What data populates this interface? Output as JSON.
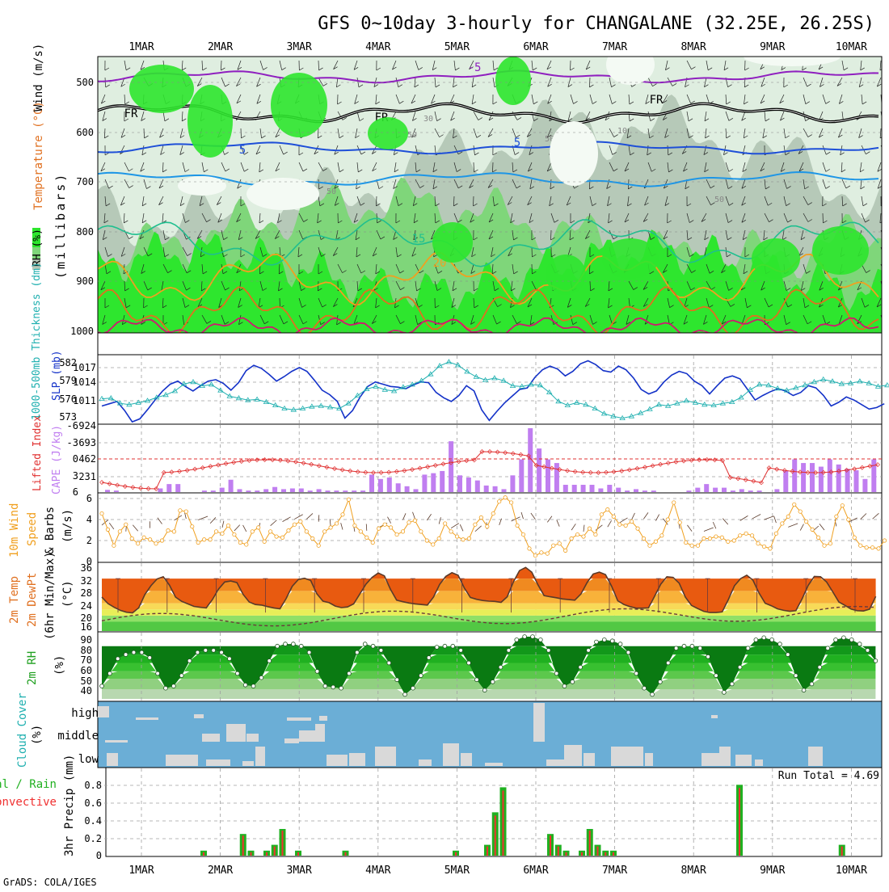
{
  "page": {
    "title": "GFS 0~10day 3-hourly for CHANGALANE (32.25E, 26.25S)",
    "footer": "GrADS: COLA/IGES"
  },
  "date_labels": [
    "1MAR",
    "2MAR",
    "3MAR",
    "4MAR",
    "5MAR",
    "6MAR",
    "7MAR",
    "8MAR",
    "9MAR",
    "10MAR"
  ],
  "colors": {
    "frame": "#000000",
    "grid": "#a0a0a0",
    "rh_light": "#dfeee0",
    "rh_mid": "#b6c9b8",
    "rh_green": "#7fd67a",
    "rh_bright": "#2ee62e",
    "temp_purple": "#8f1fbf",
    "temp_black": "#000000",
    "temp_blue": "#1e4fd8",
    "temp_lightblue": "#1e96e6",
    "temp_teal": "#1fbf8f",
    "temp_orange": "#f0a020",
    "temp_dark_orange": "#e07020",
    "temp_magenta": "#d01870",
    "slp": "#1432c8",
    "thickness": "#20b0b0",
    "lifted_index": "#e03030",
    "cape": "#c07ef0",
    "wind": "#f0a020",
    "cloud_bg": "#6baed6",
    "cloud_fill": "#d9d9d9",
    "precip_total": "#20b020",
    "precip_conv": "#f03030"
  },
  "panels": {
    "upper_air": {
      "ylabel_wind": "Wind (m/s)",
      "ylabel_temp": "Temperature (°C)",
      "ylabel_rh": "RH (%)",
      "ylabel_units": "(millibars)",
      "yticks": [
        "500",
        "600",
        "700",
        "800",
        "900",
        "1000"
      ],
      "contour_labels": [
        "-5",
        "FR",
        "FR",
        "FR",
        "5",
        "5",
        "10",
        "10",
        "15",
        "20",
        "50",
        "50",
        "50",
        "50",
        "10",
        "30"
      ]
    },
    "slp": {
      "ylabel_thickness": "1000-500mb Thickness (dm)",
      "ylabel_slp": "SLP (mb)",
      "yticks_thickness": [
        "582",
        "579",
        "576",
        "573"
      ],
      "yticks_slp": [
        "1017",
        "1014",
        "1011"
      ]
    },
    "cape": {
      "ylabel_li": "Lifted Index",
      "ylabel_cape": "CAPE (J/kg)",
      "yticks_li": [
        "-6",
        "-3",
        "0",
        "3",
        "6"
      ],
      "yticks_cape": [
        "924",
        "693",
        "462",
        "231"
      ]
    },
    "wind": {
      "ylabel_1": "10m Wind",
      "ylabel_2": "Speed",
      "ylabel_3": "& Barbs",
      "ylabel_4": "(m/s)",
      "yticks": [
        "6",
        "4",
        "2",
        "0"
      ]
    },
    "temp": {
      "ylabel_1": "2m Temp",
      "ylabel_2": "2m DewPt",
      "ylabel_3": "(6hr Min/Max)",
      "ylabel_4": "(°C)",
      "yticks": [
        "36",
        "32",
        "28",
        "24",
        "20",
        "16"
      ]
    },
    "rh": {
      "ylabel_1": "2m RH",
      "ylabel_2": "(%)",
      "yticks": [
        "90",
        "80",
        "70",
        "60",
        "50",
        "40"
      ]
    },
    "cloud": {
      "ylabel_1": "Cloud Cover",
      "ylabel_2": "(%)",
      "levels": [
        "high",
        "middle",
        "low"
      ]
    },
    "precip": {
      "ylabel_1": "Total / Rain",
      "ylabel_2": "Convective",
      "ylabel_3": "3hr Precip (mm)",
      "yticks": [
        "0.8",
        "0.6",
        "0.4",
        "0.2",
        "0"
      ],
      "run_total": "Run Total = 4.69"
    }
  },
  "chart_data": [
    {
      "type": "line",
      "name": "SLP",
      "units": "mb",
      "x_step_hours": 3,
      "values": [
        1011.8,
        1012.1,
        1012.4,
        1011.2,
        1009.7,
        1010.1,
        1011.3,
        1012.6,
        1013.8,
        1014.7,
        1015.1,
        1014.4,
        1013.8,
        1014.5,
        1015.1,
        1015.3,
        1014.8,
        1013.9,
        1014.9,
        1016.5,
        1017.2,
        1016.8,
        1016.0,
        1015.1,
        1015.7,
        1016.4,
        1016.9,
        1016.4,
        1015.2,
        1013.9,
        1013.3,
        1012.4,
        1010.2,
        1011.2,
        1013.0,
        1014.4,
        1015.0,
        1014.7,
        1014.4,
        1014.3,
        1014.1,
        1014.6,
        1015.0,
        1014.9,
        1013.6,
        1012.9,
        1012.4,
        1013.2,
        1014.5,
        1013.8,
        1011.3,
        1009.9,
        1011.1,
        1012.2,
        1013.1,
        1014.0,
        1014.2,
        1015.6,
        1016.6,
        1017.1,
        1016.7,
        1015.8,
        1016.4,
        1017.4,
        1017.8,
        1017.3,
        1016.5,
        1016.3,
        1017.1,
        1016.6,
        1015.5,
        1014.0,
        1013.4,
        1013.8,
        1015.0,
        1015.9,
        1016.4,
        1016.1,
        1015.1,
        1014.5,
        1013.4,
        1014.5,
        1015.5,
        1015.8,
        1015.4,
        1014.0,
        1012.6,
        1013.2,
        1013.7,
        1014.1,
        1013.8,
        1013.2,
        1013.6,
        1014.5,
        1014.2,
        1013.2,
        1011.8,
        1012.3,
        1013.0,
        1012.6,
        1012.0,
        1011.4,
        1011.6,
        1012.1
      ],
      "ylim": [
        1009.5,
        1018.5
      ]
    },
    {
      "type": "line",
      "name": "1000-500mb Thickness",
      "units": "dm",
      "x_step_hours": 3,
      "values": [
        576.3,
        576.4,
        575.6,
        575.4,
        575.7,
        576.0,
        576.5,
        576.9,
        577.5,
        578.6,
        578.9,
        578.3,
        578.5,
        577.6,
        576.7,
        576.4,
        576.1,
        576.2,
        575.8,
        575.3,
        574.8,
        574.6,
        574.8,
        575.1,
        575.2,
        575.0,
        574.8,
        575.6,
        576.8,
        577.8,
        578.2,
        577.7,
        577.5,
        578.1,
        578.5,
        579.1,
        580.1,
        581.4,
        582.0,
        581.5,
        580.5,
        579.7,
        579.2,
        579.5,
        579.1,
        578.3,
        578.2,
        578.5,
        578.4,
        577.3,
        575.9,
        575.3,
        575.7,
        575.4,
        574.8,
        574.0,
        573.6,
        573.3,
        573.6,
        574.1,
        574.7,
        575.4,
        575.2,
        575.6,
        576.0,
        575.7,
        575.4,
        575.3,
        575.6,
        575.8,
        576.5,
        577.7,
        578.5,
        578.4,
        577.9,
        577.6,
        578.0,
        578.4,
        578.9,
        579.3,
        579.0,
        578.6,
        578.7,
        579.0,
        578.7,
        578.2,
        578.4
      ],
      "ylim": [
        572.5,
        583
      ]
    },
    {
      "type": "bar",
      "name": "CAPE",
      "units": "J/kg",
      "x_step_hours": 6,
      "values": [
        30,
        20,
        0,
        0,
        0,
        0,
        50,
        110,
        110,
        0,
        0,
        20,
        20,
        60,
        170,
        40,
        20,
        20,
        40,
        70,
        40,
        50,
        50,
        20,
        40,
        20,
        20,
        20,
        20,
        20,
        240,
        180,
        200,
        120,
        80,
        40,
        240,
        260,
        290,
        700,
        230,
        200,
        160,
        90,
        80,
        40,
        230,
        450,
        880,
        600,
        450,
        400,
        100,
        100,
        100,
        100,
        50,
        100,
        60,
        20,
        40,
        20,
        20,
        0,
        0,
        0,
        20,
        60,
        110,
        60,
        60,
        20,
        40,
        20,
        20,
        0,
        40,
        300,
        450,
        400,
        400,
        350,
        450,
        380,
        320,
        300,
        180,
        450
      ],
      "ylim": [
        0,
        924
      ]
    },
    {
      "type": "line",
      "name": "10m Wind Speed",
      "units": "m/s",
      "x_step_hours": 3,
      "values": [
        4.8,
        3.2,
        1.6,
        3.0,
        3.7,
        2.3,
        1.8,
        2.4,
        2.2,
        1.8,
        2.1,
        3.1,
        3.0,
        5.1,
        5.0,
        3.5,
        1.9,
        2.2,
        2.2,
        3.0,
        2.8,
        3.6,
        2.7,
        1.9,
        1.7,
        3.0,
        3.4,
        2.0,
        3.0,
        2.5,
        2.4,
        3.1,
        3.7,
        4.0,
        3.0,
        2.3,
        1.6,
        3.0,
        3.4,
        3.8,
        4.7,
        6.2,
        3.6,
        3.0,
        2.4,
        1.9,
        3.3,
        3.7,
        3.4,
        2.7,
        3.0,
        3.9,
        4.1,
        3.0,
        2.1,
        1.7,
        2.3,
        3.8,
        3.0,
        2.5,
        2.2,
        2.3,
        3.7,
        4.4,
        3.5,
        4.8,
        6.0,
        6.4,
        5.9,
        3.6,
        2.7,
        1.3,
        0.6,
        0.9,
        0.8,
        1.6,
        1.8,
        1.1,
        2.3,
        2.7,
        2.5,
        3.3,
        2.7,
        4.7,
        5.2,
        4.5,
        3.7,
        3.6,
        4.0,
        3.3,
        2.3,
        1.6,
        2.0,
        2.6,
        4.2,
        5.9,
        3.9,
        1.9,
        1.6,
        1.6,
        2.3,
        2.3,
        2.5,
        2.4,
        2.0,
        2.1,
        2.6,
        2.8,
        2.6,
        1.8,
        1.5,
        1.3,
        2.8,
        3.8,
        4.5,
        5.7,
        5.0,
        4.0,
        3.2,
        2.4,
        1.6,
        1.8,
        4.5,
        5.6,
        4.2,
        2.4,
        1.6,
        1.4,
        1.4,
        1.3,
        2.1
      ],
      "ylim": [
        0,
        6.3
      ]
    },
    {
      "type": "area",
      "name": "2m Temp",
      "units": "°C",
      "x_step_hours": 3,
      "values": [
        26.0,
        23.9,
        22.7,
        21.7,
        21.1,
        20.9,
        22.5,
        26.8,
        29.7,
        31.9,
        32.6,
        29.9,
        26.0,
        24.6,
        23.8,
        23.0,
        22.7,
        22.5,
        25.2,
        28.6,
        30.9,
        31.2,
        30.7,
        26.9,
        24.4,
        23.6,
        23.4,
        22.9,
        22.5,
        22.2,
        25.5,
        29.5,
        31.7,
        32.1,
        31.4,
        27.1,
        24.7,
        24.2,
        23.1,
        22.6,
        22.8,
        23.8,
        27.0,
        30.2,
        32.4,
        33.8,
        32.9,
        28.5,
        25.0,
        24.5,
        24.1,
        23.8,
        23.6,
        23.4,
        26.0,
        30.1,
        32.7,
        33.9,
        33.1,
        29.0,
        25.9,
        25.3,
        24.9,
        24.7,
        24.6,
        24.3,
        26.1,
        30.9,
        34.6,
        35.6,
        34.1,
        30.0,
        26.5,
        26.1,
        25.8,
        25.4,
        25.2,
        25.0,
        27.0,
        30.7,
        33.5,
        34.1,
        33.3,
        29.5,
        24.8,
        23.6,
        22.9,
        22.4,
        22.4,
        22.5,
        26.3,
        30.2,
        32.6,
        32.4,
        30.5,
        26.0,
        23.3,
        22.3,
        21.4,
        21.0,
        21.0,
        21.2,
        25.2,
        29.7,
        32.0,
        33.1,
        31.5,
        27.3,
        24.0,
        23.2,
        22.2,
        21.7,
        21.4,
        21.6,
        25.4,
        29.8,
        32.7,
        32.6,
        30.9,
        27.7,
        24.4,
        23.3,
        22.1,
        21.6,
        21.5,
        22.1,
        26.2
      ],
      "ylim": [
        15,
        37
      ]
    },
    {
      "type": "area",
      "name": "2m RH",
      "units": "%",
      "x_step_hours": 3,
      "values": [
        48,
        60,
        74,
        78,
        80,
        80,
        75,
        60,
        46,
        48,
        58,
        72,
        80,
        82,
        82,
        80,
        74,
        60,
        49,
        48,
        56,
        72,
        86,
        88,
        88,
        86,
        80,
        62,
        48,
        47,
        46,
        60,
        80,
        88,
        86,
        82,
        70,
        54,
        40,
        46,
        58,
        75,
        85,
        86,
        86,
        82,
        70,
        54,
        44,
        52,
        66,
        82,
        92,
        95,
        95,
        92,
        82,
        60,
        48,
        52,
        66,
        82,
        90,
        92,
        91,
        88,
        80,
        60,
        46,
        40,
        52,
        70,
        84,
        86,
        86,
        84,
        76,
        58,
        42,
        50,
        66,
        84,
        92,
        94,
        92,
        88,
        78,
        58,
        44,
        50,
        66,
        84,
        92,
        94,
        92,
        88,
        82,
        72
      ],
      "ylim": [
        35,
        95
      ]
    },
    {
      "type": "line",
      "name": "3hr Precip",
      "units": "mm",
      "x_step_hours": 3,
      "values": [
        0,
        0,
        0,
        0,
        0,
        0,
        0,
        0,
        0,
        0,
        0,
        0,
        0.06,
        0,
        0,
        0,
        0,
        0.26,
        0.06,
        0,
        0.06,
        0.13,
        0.32,
        0,
        0.06,
        0,
        0,
        0,
        0,
        0,
        0.06,
        0,
        0,
        0,
        0,
        0,
        0,
        0,
        0,
        0,
        0,
        0,
        0,
        0,
        0.06,
        0,
        0,
        0,
        0.13,
        0.52,
        0.82,
        0,
        0,
        0,
        0,
        0,
        0.26,
        0.13,
        0.06,
        0,
        0.06,
        0.32,
        0.13,
        0.06,
        0.06,
        0,
        0,
        0,
        0,
        0,
        0,
        0,
        0,
        0,
        0,
        0,
        0,
        0,
        0,
        0,
        0.85,
        0,
        0,
        0,
        0,
        0,
        0,
        0,
        0,
        0,
        0,
        0,
        0,
        0.13
      ],
      "ylim": [
        0,
        0.95
      ],
      "run_total": 4.69
    }
  ]
}
